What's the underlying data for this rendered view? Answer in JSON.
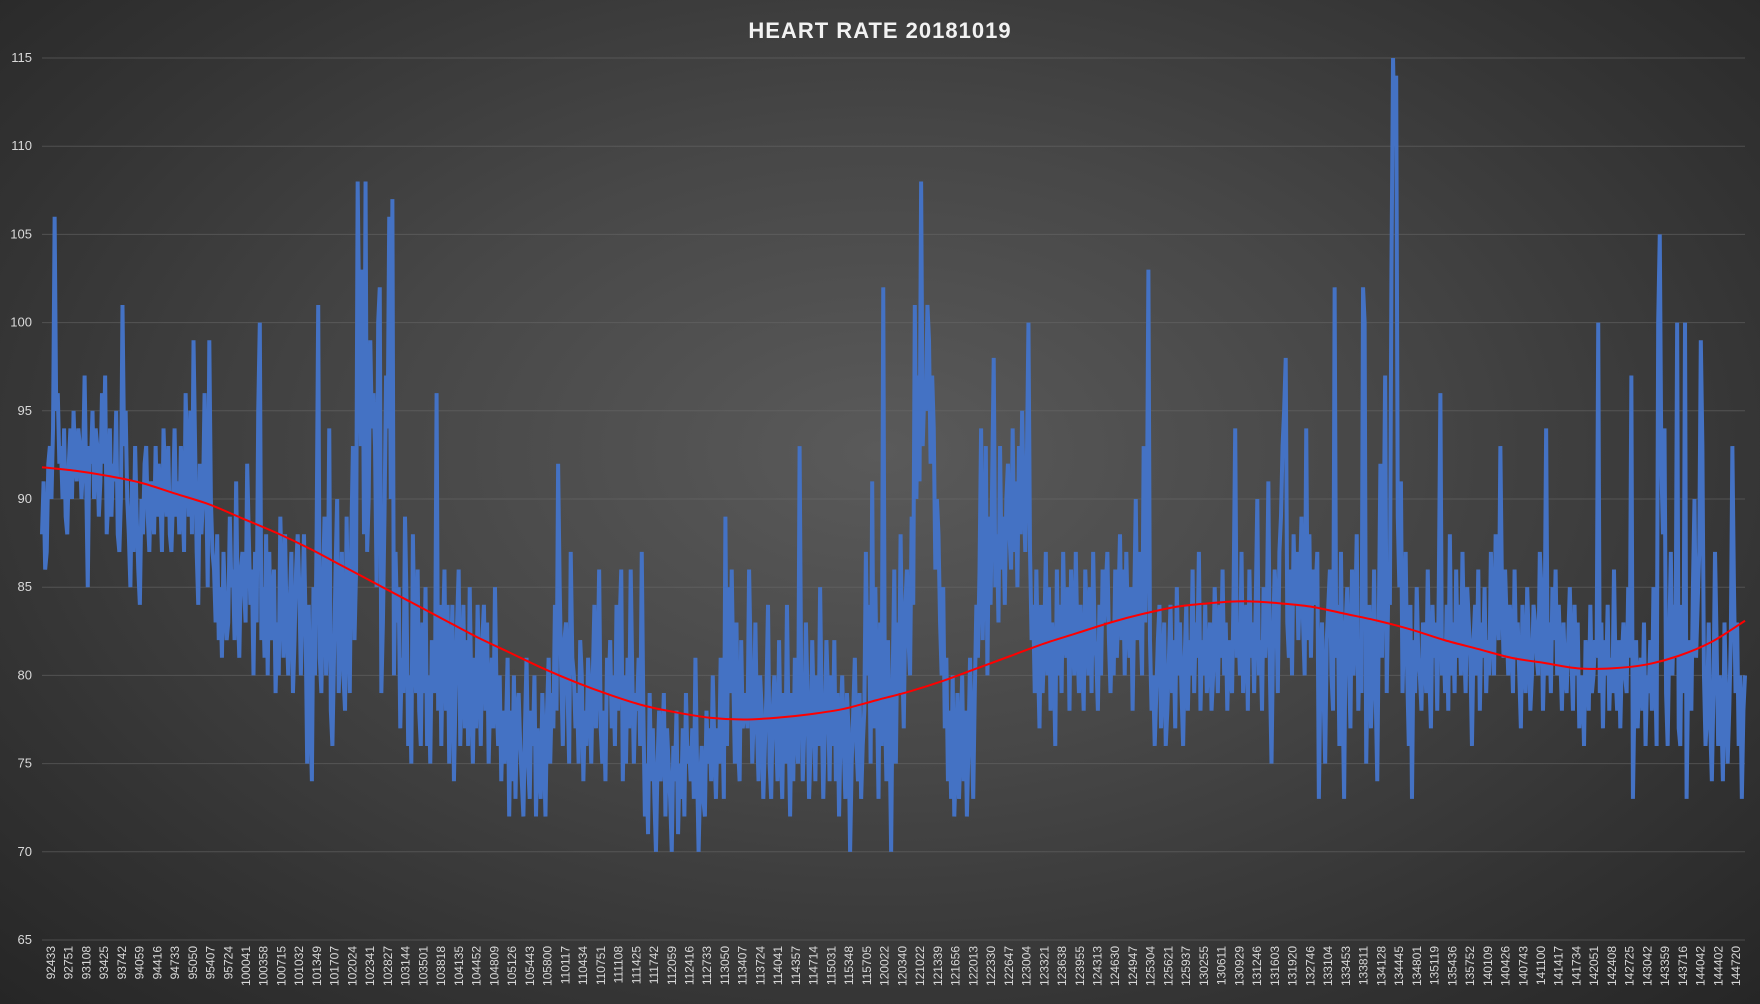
{
  "chart_data": {
    "type": "line",
    "title": "HEART RATE 20181019",
    "xlabel": "",
    "ylabel": "",
    "ylim": [
      65,
      115
    ],
    "yticks": [
      65,
      70,
      75,
      80,
      85,
      90,
      95,
      100,
      105,
      110,
      115
    ],
    "grid": true,
    "legend": "none",
    "x_tick_labels": [
      "92433",
      "92751",
      "93108",
      "93425",
      "93742",
      "94059",
      "94416",
      "94733",
      "95050",
      "95407",
      "95724",
      "100041",
      "100358",
      "100715",
      "101032",
      "101349",
      "101707",
      "102024",
      "102341",
      "102827",
      "103144",
      "103501",
      "103818",
      "104135",
      "104452",
      "104809",
      "105126",
      "105443",
      "105800",
      "110117",
      "110434",
      "110751",
      "111108",
      "111425",
      "111742",
      "112059",
      "112416",
      "112733",
      "113050",
      "113407",
      "113724",
      "114041",
      "114357",
      "114714",
      "115031",
      "115348",
      "115705",
      "120022",
      "120340",
      "121022",
      "121339",
      "121656",
      "122013",
      "122330",
      "122647",
      "123004",
      "123321",
      "123638",
      "123955",
      "124313",
      "124630",
      "124947",
      "125304",
      "125621",
      "125937",
      "130255",
      "130611",
      "130929",
      "131246",
      "131603",
      "131920",
      "132746",
      "133104",
      "133453",
      "133811",
      "134128",
      "134445",
      "134801",
      "135119",
      "135436",
      "135752",
      "140109",
      "140426",
      "140743",
      "141100",
      "141417",
      "141734",
      "142051",
      "142408",
      "142725",
      "143042",
      "143359",
      "143716",
      "144042",
      "144402",
      "144720"
    ],
    "series": [
      {
        "color": "#4472c4",
        "values": [
          88,
          91,
          86,
          87,
          92,
          93,
          90,
          94,
          106,
          95,
          96,
          92,
          93,
          90,
          94,
          89,
          88,
          92,
          94,
          90,
          95,
          92,
          91,
          94,
          93,
          90,
          92,
          97,
          91,
          85,
          93,
          92,
          95,
          90,
          94,
          93,
          89,
          91,
          96,
          92,
          97,
          88,
          90,
          94,
          89,
          92,
          91,
          95,
          88,
          87,
          90,
          101,
          93,
          95,
          90,
          88,
          85,
          91,
          87,
          93,
          89,
          86,
          84,
          90,
          88,
          92,
          93,
          89,
          87,
          91,
          90,
          88,
          93,
          89,
          92,
          90,
          87,
          94,
          91,
          89,
          93,
          88,
          87,
          90,
          94,
          89,
          91,
          88,
          93,
          90,
          87,
          96,
          92,
          89,
          95,
          88,
          99,
          93,
          87,
          84,
          92,
          88,
          90,
          96,
          91,
          85,
          99,
          90,
          87,
          86,
          83,
          88,
          82,
          85,
          81,
          87,
          84,
          82,
          83,
          89,
          85,
          86,
          82,
          91,
          84,
          81,
          86,
          87,
          85,
          83,
          92,
          88,
          84,
          86,
          80,
          87,
          83,
          95,
          100,
          82,
          85,
          81,
          88,
          80,
          87,
          82,
          84,
          86,
          79,
          83,
          80,
          89,
          85,
          81,
          88,
          83,
          80,
          84,
          87,
          79,
          82,
          86,
          88,
          85,
          80,
          84,
          88,
          83,
          75,
          84,
          78,
          74,
          85,
          80,
          88,
          101,
          81,
          79,
          85,
          89,
          80,
          83,
          94,
          78,
          76,
          81,
          86,
          90,
          79,
          82,
          87,
          80,
          78,
          89,
          83,
          79,
          88,
          93,
          82,
          86,
          108,
          100,
          93,
          103,
          88,
          108,
          87,
          90,
          99,
          94,
          96,
          93,
          85,
          100,
          102,
          79,
          83,
          89,
          97,
          94,
          106,
          90,
          107,
          80,
          87,
          83,
          85,
          77,
          81,
          79,
          89,
          84,
          76,
          80,
          75,
          88,
          82,
          79,
          86,
          78,
          76,
          83,
          79,
          85,
          76,
          80,
          75,
          82,
          81,
          79,
          96,
          78,
          84,
          76,
          82,
          86,
          78,
          84,
          75,
          80,
          84,
          74,
          79,
          83,
          86,
          76,
          80,
          84,
          77,
          82,
          76,
          85,
          79,
          75,
          81,
          77,
          84,
          80,
          76,
          82,
          84,
          78,
          83,
          75,
          79,
          81,
          77,
          85,
          79,
          76,
          80,
          74,
          78,
          75,
          77,
          81,
          72,
          78,
          74,
          80,
          73,
          78,
          79,
          76,
          74,
          72,
          77,
          81,
          75,
          73,
          78,
          76,
          80,
          72,
          77,
          75,
          73,
          79,
          76,
          72,
          78,
          81,
          75,
          79,
          77,
          84,
          78,
          92,
          85,
          80,
          76,
          82,
          83,
          79,
          75,
          87,
          81,
          80,
          77,
          79,
          75,
          82,
          80,
          74,
          78,
          76,
          81,
          79,
          75,
          80,
          84,
          77,
          80,
          86,
          77,
          75,
          78,
          74,
          81,
          79,
          82,
          77,
          80,
          76,
          84,
          78,
          83,
          86,
          74,
          80,
          75,
          81,
          77,
          86,
          80,
          75,
          79,
          78,
          81,
          76,
          87,
          78,
          72,
          75,
          71,
          79,
          74,
          77,
          73,
          70,
          75,
          78,
          74,
          76,
          79,
          72,
          77,
          75,
          73,
          70,
          76,
          74,
          78,
          71,
          75,
          73,
          77,
          72,
          79,
          75,
          76,
          74,
          77,
          73,
          81,
          75,
          70,
          74,
          76,
          73,
          72,
          78,
          75,
          77,
          74,
          80,
          76,
          73,
          77,
          75,
          81,
          78,
          73,
          89,
          76,
          85,
          79,
          86,
          80,
          75,
          83,
          76,
          74,
          82,
          77,
          78,
          79,
          77,
          86,
          81,
          75,
          78,
          83,
          77,
          74,
          80,
          78,
          73,
          76,
          79,
          84,
          75,
          73,
          78,
          80,
          77,
          74,
          82,
          76,
          73,
          79,
          75,
          84,
          77,
          72,
          79,
          74,
          81,
          77,
          75,
          93,
          80,
          74,
          77,
          83,
          79,
          73,
          76,
          82,
          78,
          74,
          80,
          76,
          85,
          78,
          73,
          77,
          82,
          79,
          74,
          80,
          76,
          82,
          74,
          79,
          72,
          77,
          80,
          76,
          73,
          79,
          77,
          70,
          75,
          78,
          81,
          76,
          74,
          79,
          73,
          76,
          78,
          87,
          80,
          84,
          75,
          91,
          77,
          85,
          79,
          73,
          83,
          76,
          102,
          79,
          74,
          82,
          77,
          70,
          80,
          86,
          75,
          83,
          79,
          88,
          81,
          77,
          84,
          86,
          82,
          80,
          89,
          84,
          101,
          90,
          97,
          91,
          108,
          93,
          96,
          95,
          101,
          99,
          92,
          97,
          94,
          86,
          90,
          88,
          83,
          80,
          85,
          77,
          81,
          74,
          78,
          73,
          80,
          72,
          75,
          79,
          73,
          76,
          80,
          74,
          78,
          72,
          76,
          81,
          77,
          73,
          79,
          84,
          81,
          86,
          94,
          82,
          87,
          93,
          80,
          89,
          84,
          91,
          98,
          85,
          88,
          83,
          93,
          86,
          89,
          84,
          90,
          92,
          88,
          86,
          94,
          87,
          91,
          85,
          93,
          88,
          95,
          90,
          87,
          92,
          100,
          87,
          82,
          84,
          79,
          86,
          81,
          77,
          84,
          79,
          82,
          87,
          80,
          85,
          78,
          83,
          81,
          76,
          86,
          80,
          84,
          79,
          87,
          82,
          81,
          85,
          78,
          86,
          83,
          80,
          87,
          82,
          79,
          84,
          81,
          78,
          86,
          83,
          80,
          85,
          79,
          87,
          82,
          81,
          78,
          84,
          80,
          86,
          83,
          85,
          87,
          82,
          79,
          83,
          80,
          86,
          81,
          84,
          88,
          82,
          86,
          80,
          87,
          83,
          81,
          85,
          78,
          84,
          90,
          82,
          87,
          83,
          80,
          93,
          83,
          88,
          103,
          82,
          78,
          80,
          76,
          79,
          82,
          84,
          77,
          80,
          83,
          76,
          78,
          81,
          84,
          79,
          82,
          77,
          85,
          80,
          83,
          79,
          76,
          81,
          84,
          78,
          82,
          80,
          86,
          79,
          83,
          81,
          87,
          78,
          82,
          80,
          84,
          79,
          81,
          83,
          78,
          80,
          85,
          82,
          79,
          84,
          81,
          86,
          80,
          83,
          78,
          82,
          80,
          79,
          85,
          94,
          81,
          83,
          80,
          87,
          79,
          82,
          84,
          78,
          86,
          81,
          83,
          79,
          84,
          90,
          80,
          82,
          78,
          85,
          81,
          83,
          91,
          80,
          75,
          82,
          86,
          84,
          79,
          87,
          89,
          93,
          95,
          98,
          83,
          81,
          86,
          80,
          88,
          84,
          87,
          82,
          85,
          89,
          83,
          80,
          94,
          82,
          88,
          81,
          86,
          84,
          85,
          87,
          73,
          80,
          83,
          79,
          75,
          82,
          84,
          86,
          80,
          78,
          102,
          81,
          84,
          76,
          87,
          79,
          73,
          83,
          85,
          81,
          77,
          86,
          80,
          83,
          88,
          78,
          82,
          79,
          102,
          100,
          75,
          81,
          84,
          77,
          80,
          86,
          79,
          74,
          83,
          92,
          81,
          87,
          97,
          79,
          85,
          84,
          103,
          115,
          110,
          114,
          89,
          85,
          91,
          79,
          83,
          87,
          80,
          76,
          84,
          73,
          82,
          79,
          85,
          81,
          80,
          78,
          83,
          82,
          79,
          86,
          80,
          77,
          84,
          81,
          83,
          78,
          85,
          96,
          80,
          82,
          79,
          84,
          78,
          88,
          80,
          83,
          79,
          86,
          81,
          84,
          80,
          87,
          82,
          79,
          85,
          83,
          81,
          76,
          82,
          84,
          80,
          86,
          78,
          83,
          81,
          85,
          79,
          82,
          80,
          87,
          83,
          80,
          88,
          84,
          82,
          93,
          85,
          81,
          86,
          83,
          80,
          84,
          82,
          79,
          86,
          81,
          83,
          80,
          77,
          84,
          81,
          79,
          85,
          82,
          78,
          80,
          84,
          83,
          81,
          80,
          87,
          85,
          78,
          82,
          94,
          80,
          83,
          79,
          85,
          82,
          86,
          80,
          84,
          81,
          78,
          83,
          80,
          79,
          82,
          85,
          81,
          78,
          84,
          80,
          83,
          77,
          79,
          80,
          76,
          82,
          81,
          78,
          84,
          79,
          80,
          82,
          81,
          100,
          79,
          83,
          77,
          82,
          80,
          84,
          78,
          81,
          79,
          86,
          80,
          78,
          82,
          77,
          81,
          83,
          80,
          79,
          85,
          81,
          97,
          73,
          79,
          82,
          77,
          80,
          81,
          78,
          83,
          76,
          80,
          79,
          82,
          78,
          85,
          81,
          76,
          100,
          105,
          92,
          88,
          94,
          79,
          76,
          82,
          87,
          80,
          84,
          81,
          100,
          77,
          76,
          84,
          79,
          100,
          73,
          80,
          82,
          78,
          85,
          90,
          81,
          84,
          87,
          99,
          93,
          80,
          76,
          78,
          83,
          77,
          74,
          79,
          87,
          82,
          76,
          80,
          78,
          74,
          83,
          79,
          75,
          78,
          82,
          93,
          85,
          79,
          83,
          76,
          80,
          73,
          78,
          80
        ]
      },
      {
        "color": "#ff0000",
        "values": [
          91.8,
          91.6,
          91.3,
          90.9,
          90.3,
          89.7,
          88.9,
          88.1,
          87.2,
          86.2,
          85.2,
          84.2,
          83.2,
          82.2,
          81.3,
          80.4,
          79.6,
          78.9,
          78.3,
          77.9,
          77.6,
          77.5,
          77.6,
          77.8,
          78.1,
          78.6,
          79.1,
          79.7,
          80.4,
          81.1,
          81.8,
          82.4,
          83.0,
          83.5,
          83.9,
          84.1,
          84.2,
          84.1,
          83.9,
          83.5,
          83.1,
          82.6,
          82.0,
          81.5,
          81.0,
          80.7,
          80.4,
          80.4,
          80.6,
          81.1,
          81.9,
          83.1
        ]
      }
    ]
  }
}
